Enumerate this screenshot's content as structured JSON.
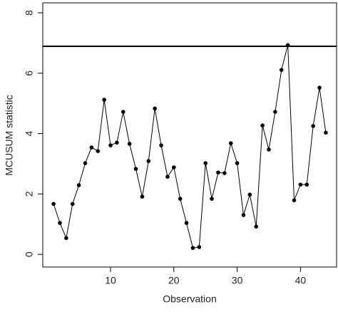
{
  "chart_data": {
    "type": "line",
    "x_label": "Observation",
    "y_label": "MCUSUM statistic",
    "x": [
      1,
      2,
      3,
      4,
      5,
      6,
      7,
      8,
      9,
      10,
      11,
      12,
      13,
      14,
      15,
      16,
      17,
      18,
      19,
      20,
      21,
      22,
      23,
      24,
      25,
      26,
      27,
      28,
      29,
      30,
      31,
      32,
      33,
      34,
      35,
      36,
      37,
      38,
      39,
      40,
      41,
      42,
      43,
      44
    ],
    "values": [
      1.67,
      1.04,
      0.54,
      1.67,
      2.29,
      3.02,
      3.54,
      3.42,
      5.12,
      3.61,
      3.7,
      4.72,
      3.66,
      2.83,
      1.91,
      3.09,
      4.83,
      3.61,
      2.57,
      2.88,
      1.84,
      1.04,
      0.21,
      0.24,
      3.02,
      1.84,
      2.71,
      2.69,
      3.68,
      3.02,
      1.3,
      1.98,
      0.92,
      4.27,
      3.47,
      4.72,
      6.11,
      6.93,
      1.79,
      2.31,
      2.31,
      4.25,
      5.52,
      4.03
    ],
    "color": "#000000",
    "threshold": 6.89,
    "xlim": [
      -0.7,
      45.7
    ],
    "ylim": [
      -0.42,
      8.33
    ],
    "xticks": [
      10,
      20,
      30,
      40
    ],
    "yticks": [
      0,
      2,
      4,
      6,
      8
    ]
  }
}
